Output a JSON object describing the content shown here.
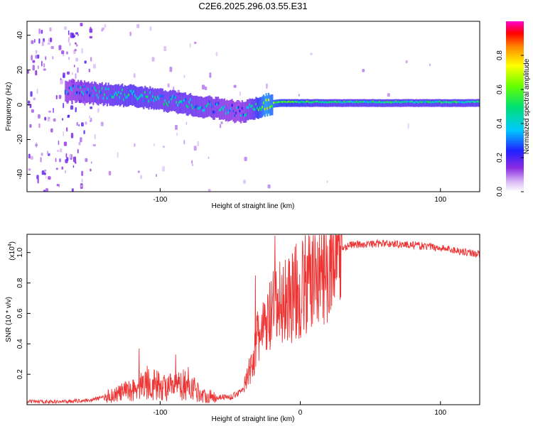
{
  "title": "C2E6.2025.296.03.55.E31",
  "chart_data": [
    {
      "type": "heatmap",
      "xlabel": "Height of straight line (km)",
      "ylabel": "Frequency (Hz)",
      "xlim": [
        -195,
        128
      ],
      "ylim": [
        -50,
        48
      ],
      "xticks": [
        {
          "value": -100,
          "label": "-100"
        },
        {
          "value": 100,
          "label": "100"
        }
      ],
      "yticks": [
        {
          "value": -40,
          "label": "-40"
        },
        {
          "value": -20,
          "label": "-20"
        },
        {
          "value": 0,
          "label": "0"
        },
        {
          "value": 20,
          "label": "20"
        },
        {
          "value": 40,
          "label": "40"
        }
      ],
      "colorbar": {
        "label": "Normalized spectral amplitude",
        "range": [
          0,
          1
        ],
        "ticks": [
          {
            "value": 0.0,
            "label": "0.0"
          },
          {
            "value": 0.2,
            "label": "0.2"
          },
          {
            "value": 0.4,
            "label": "0.4"
          },
          {
            "value": 0.6,
            "label": "0.6"
          },
          {
            "value": 0.8,
            "label": "0.8"
          }
        ]
      },
      "ridge": {
        "x": [
          -165,
          -140,
          -120,
          -100,
          -80,
          -60,
          -45,
          -35,
          -25,
          -15,
          0,
          20,
          60,
          128
        ],
        "freq": [
          8,
          6,
          5,
          3,
          0,
          -2,
          -4,
          -3,
          0,
          1,
          1,
          1,
          1,
          1
        ],
        "amplitude": [
          0.3,
          0.4,
          0.45,
          0.4,
          0.4,
          0.35,
          0.3,
          0.4,
          0.7,
          0.55,
          0.5,
          0.45,
          0.45,
          0.45
        ]
      }
    },
    {
      "type": "line",
      "xlabel": "Height of straight line (km)",
      "ylabel": "SNR (10 * v/v)",
      "yscale_label": "(x10^4)",
      "scale_base": "(x10",
      "scale_exp": "4",
      "scale_close": ")",
      "xlim": [
        -195,
        128
      ],
      "ylim": [
        0.0,
        1.12
      ],
      "xticks": [
        {
          "value": -100,
          "label": "-100"
        },
        {
          "value": 0,
          "label": "0"
        },
        {
          "value": 100,
          "label": "100"
        }
      ],
      "yticks": [
        {
          "value": 0.2,
          "label": "0.2"
        },
        {
          "value": 0.4,
          "label": "0.4"
        },
        {
          "value": 0.6,
          "label": "0.6"
        },
        {
          "value": 0.8,
          "label": "0.8"
        },
        {
          "value": 1.0,
          "label": "1.0"
        }
      ],
      "color": "#ee3333",
      "envelope_x": [
        -195,
        -170,
        -150,
        -135,
        -120,
        -110,
        -100,
        -90,
        -80,
        -70,
        -60,
        -50,
        -45,
        -40,
        -35,
        -30,
        -25,
        -20,
        -10,
        0,
        10,
        20,
        35,
        60,
        80,
        100,
        128
      ],
      "envelope_y": [
        0.02,
        0.02,
        0.03,
        0.06,
        0.1,
        0.15,
        0.12,
        0.11,
        0.14,
        0.06,
        0.05,
        0.05,
        0.07,
        0.12,
        0.25,
        0.45,
        0.5,
        0.6,
        0.7,
        0.75,
        0.85,
        0.98,
        1.05,
        1.06,
        1.05,
        1.03,
        0.99
      ],
      "spikes": [
        {
          "x": -115,
          "y": 0.37
        },
        {
          "x": -89,
          "y": 0.33
        },
        {
          "x": -32,
          "y": 0.85
        },
        {
          "x": -18,
          "y": 1.11
        }
      ]
    }
  ]
}
